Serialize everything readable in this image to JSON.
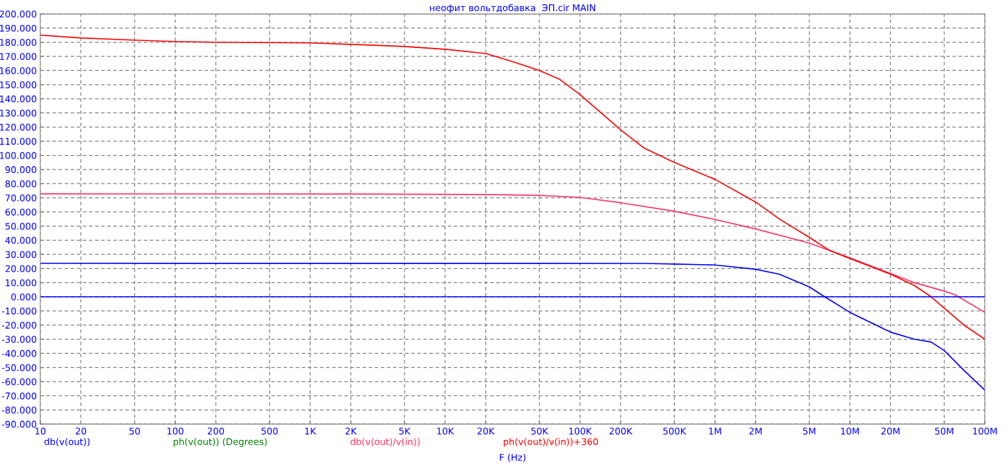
{
  "chart_data": {
    "type": "line",
    "title": "неофит вольтдобавка  ЭП.cir MAIN",
    "xlabel": "F (Hz)",
    "log": "x",
    "grid": true,
    "legend": "bottom",
    "line_style": "solid",
    "marker": "none",
    "xlim": [
      10,
      100000000
    ],
    "xticks": [
      10,
      20,
      50,
      100,
      200,
      500,
      {
        "value": 1000,
        "label": "1K"
      },
      {
        "value": 2000,
        "label": "2K"
      },
      {
        "value": 5000,
        "label": "5K"
      },
      {
        "value": 10000,
        "label": "10K"
      },
      {
        "value": 20000,
        "label": "20K"
      },
      {
        "value": 50000,
        "label": "50K"
      },
      {
        "value": 100000,
        "label": "100K"
      },
      {
        "value": 200000,
        "label": "200K"
      },
      {
        "value": 500000,
        "label": "500K"
      },
      {
        "value": 1000000,
        "label": "1M"
      },
      {
        "value": 2000000,
        "label": "2M"
      },
      {
        "value": 5000000,
        "label": "5M"
      },
      {
        "value": 10000000,
        "label": "10M"
      },
      {
        "value": 20000000,
        "label": "20M"
      },
      {
        "value": 50000000,
        "label": "50M"
      },
      {
        "value": 100000000,
        "label": "100M"
      }
    ],
    "ylim": [
      -90,
      200
    ],
    "yticks": [
      {
        "value": 200,
        "label": "200.000"
      },
      {
        "value": 190,
        "label": "190.000"
      },
      {
        "value": 180,
        "label": "180.000"
      },
      {
        "value": 170,
        "label": "170.000"
      },
      {
        "value": 160,
        "label": "160.000"
      },
      {
        "value": 150,
        "label": "150.000"
      },
      {
        "value": 140,
        "label": "140.000"
      },
      {
        "value": 130,
        "label": "130.000"
      },
      {
        "value": 120,
        "label": "120.000"
      },
      {
        "value": 110,
        "label": "110.000"
      },
      {
        "value": 100,
        "label": "100.000"
      },
      {
        "value": 90,
        "label": "90.000"
      },
      {
        "value": 80,
        "label": "80.000"
      },
      {
        "value": 70,
        "label": "70.000"
      },
      {
        "value": 60,
        "label": "60.000"
      },
      {
        "value": 50,
        "label": "50.000"
      },
      {
        "value": 40,
        "label": "40.000"
      },
      {
        "value": 30,
        "label": "30.000"
      },
      {
        "value": 20,
        "label": "20.000"
      },
      {
        "value": 10,
        "label": "10.000"
      },
      {
        "value": 0,
        "label": "0.000"
      },
      {
        "value": -10,
        "label": "-10.000"
      },
      {
        "value": -20,
        "label": "-20.000"
      },
      {
        "value": -30,
        "label": "-30.000"
      },
      {
        "value": -40,
        "label": "-40.000"
      },
      {
        "value": -50,
        "label": "-50.000"
      },
      {
        "value": -60,
        "label": "-60.000"
      },
      {
        "value": -70,
        "label": "-70.000"
      },
      {
        "value": -80,
        "label": "-80.000"
      },
      {
        "value": -90,
        "label": "-90.000"
      }
    ],
    "ref_lines": [
      {
        "axis": "y",
        "value": 0,
        "color": "#0000ff"
      }
    ],
    "series": [
      {
        "name": "db(v(out))",
        "color": "#0000ff",
        "x": [
          10,
          300000,
          500000,
          1000000,
          2000000,
          3000000,
          5000000,
          6500000,
          10000000,
          20000000,
          30000000,
          40000000,
          50000000,
          70000000,
          100000000
        ],
        "values": [
          23.7,
          23.6,
          23.2,
          22.5,
          19.5,
          16,
          7,
          0,
          -11,
          -25,
          -30,
          -32,
          -38,
          -52,
          -66
        ]
      },
      {
        "name": "ph(v(out)) (Degrees)",
        "color": "#008000"
      },
      {
        "name": "db(v(out)/v(in))",
        "color": "#ff3366",
        "x": [
          10,
          2000,
          20000,
          50000,
          100000,
          200000,
          500000,
          1000000,
          2000000,
          5000000,
          10000000,
          20000000,
          30000000,
          50000000,
          60000000,
          100000000
        ],
        "values": [
          72.8,
          72.7,
          72.3,
          71.7,
          70.3,
          66.5,
          60.5,
          54.7,
          48,
          38,
          27.5,
          16.5,
          10,
          4,
          1.5,
          -11
        ]
      },
      {
        "name": "ph(v(out)/v(in))+360",
        "color": "#ff0000",
        "x": [
          10,
          20,
          50,
          100,
          200,
          1000,
          2000,
          5000,
          10000,
          20000,
          30000,
          50000,
          70000,
          100000,
          200000,
          300000,
          500000,
          1000000,
          2000000,
          3000000,
          5000000,
          7000000,
          10000000,
          20000000,
          30000000,
          40000000,
          50000000,
          70000000,
          100000000
        ],
        "values": [
          185,
          183,
          181.5,
          180.5,
          180,
          179.5,
          178.5,
          177,
          175,
          172,
          167,
          160,
          154,
          143,
          118,
          105,
          95,
          83,
          67,
          55,
          42,
          33,
          27,
          16,
          8,
          0,
          -8,
          -20,
          -30
        ]
      }
    ]
  }
}
